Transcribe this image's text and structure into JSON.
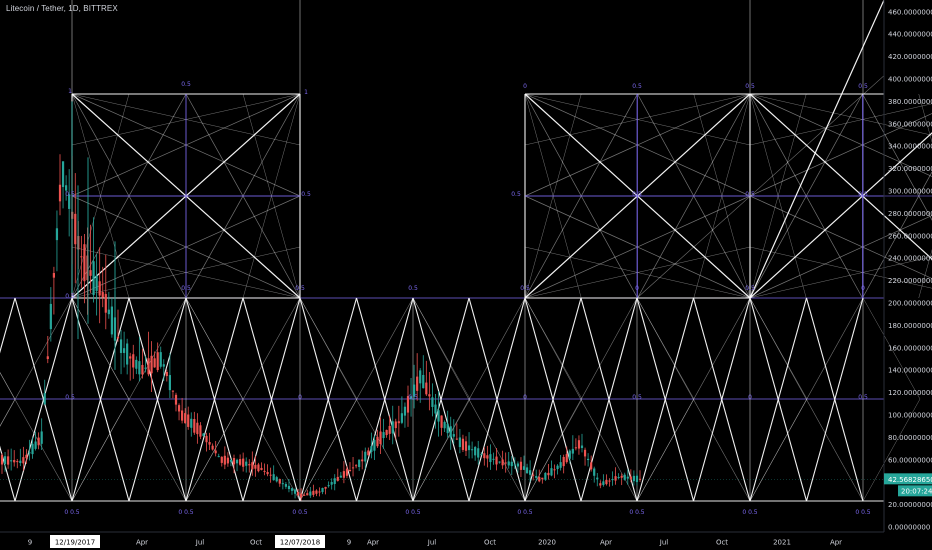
{
  "header": {
    "title": "Litecoin / Tether, 1D, BITTREX"
  },
  "colors": {
    "background": "#000000",
    "grid": "#ffffff",
    "gann_purple": "#7b68ee",
    "up": "#26a69a",
    "down": "#ef5350",
    "price_badge": "#26a69a"
  },
  "price_axis": {
    "ticks": [
      "460.00000000",
      "440.00000000",
      "420.00000000",
      "400.00000000",
      "380.00000000",
      "360.00000000",
      "340.00000000",
      "320.00000000",
      "300.00000000",
      "280.00000000",
      "260.00000000",
      "240.00000000",
      "220.00000000",
      "200.00000000",
      "180.00000000",
      "160.00000000",
      "140.00000000",
      "120.00000000",
      "100.00000000",
      "80.00000000",
      "60.00000000",
      "20.00000000",
      "0.00000000"
    ],
    "last_price": "42.56828650",
    "countdown": "20:07:24"
  },
  "time_axis": {
    "labels": [
      "9",
      "12/19/2017",
      "Apr",
      "Jul",
      "Oct",
      "12/07/2018",
      "9",
      "Apr",
      "Jul",
      "Oct",
      "2020",
      "Apr",
      "Jul",
      "Oct",
      "2021",
      "Apr"
    ]
  },
  "gann_labels": [
    "1",
    "0.5",
    "1",
    "0.5",
    "0.5",
    "0",
    "0.5",
    "0.5",
    "0.5",
    "0.5",
    "0.5",
    "0.5",
    "0.5",
    "0.5",
    "0.5",
    "0.5",
    "0.5",
    "0.5",
    "0",
    "0.5",
    "0",
    "0.5",
    "0",
    "0.5",
    "0",
    "0.5",
    "0",
    "0.5"
  ],
  "chart_data": {
    "type": "candlestick",
    "title": "Litecoin / Tether, 1D, BITTREX",
    "ylim": [
      0,
      470
    ],
    "y_scale": "linear",
    "last_price": 42.5682865,
    "x_labels": [
      "12/19/2017",
      "Apr",
      "Jul",
      "Oct",
      "12/07/2018",
      "Apr",
      "Jul",
      "Oct",
      "2020",
      "Apr",
      "Jul",
      "Oct",
      "2021",
      "Apr"
    ],
    "price_path": [
      {
        "date": "2017-09",
        "close": 60
      },
      {
        "date": "2017-10",
        "close": 58
      },
      {
        "date": "2017-11",
        "close": 80
      },
      {
        "date": "2017-12-19",
        "close": 320
      },
      {
        "date": "2018-01",
        "close": 240
      },
      {
        "date": "2018-02",
        "close": 210
      },
      {
        "date": "2018-03",
        "close": 160
      },
      {
        "date": "2018-04",
        "close": 140
      },
      {
        "date": "2018-05",
        "close": 150
      },
      {
        "date": "2018-06",
        "close": 100
      },
      {
        "date": "2018-07",
        "close": 85
      },
      {
        "date": "2018-08",
        "close": 60
      },
      {
        "date": "2018-09",
        "close": 58
      },
      {
        "date": "2018-10",
        "close": 52
      },
      {
        "date": "2018-11",
        "close": 40
      },
      {
        "date": "2018-12-07",
        "close": 28
      },
      {
        "date": "2019-01",
        "close": 32
      },
      {
        "date": "2019-02",
        "close": 45
      },
      {
        "date": "2019-03",
        "close": 58
      },
      {
        "date": "2019-04",
        "close": 80
      },
      {
        "date": "2019-05",
        "close": 95
      },
      {
        "date": "2019-06",
        "close": 135
      },
      {
        "date": "2019-07",
        "close": 95
      },
      {
        "date": "2019-08",
        "close": 75
      },
      {
        "date": "2019-09",
        "close": 65
      },
      {
        "date": "2019-10",
        "close": 58
      },
      {
        "date": "2019-11",
        "close": 55
      },
      {
        "date": "2019-12",
        "close": 42
      },
      {
        "date": "2020-01",
        "close": 55
      },
      {
        "date": "2020-02",
        "close": 75
      },
      {
        "date": "2020-03",
        "close": 38
      },
      {
        "date": "2020-04",
        "close": 45
      },
      {
        "date": "2020-05",
        "close": 42.57
      }
    ],
    "gann_levels": [
      0,
      92,
      184,
      368
    ]
  }
}
